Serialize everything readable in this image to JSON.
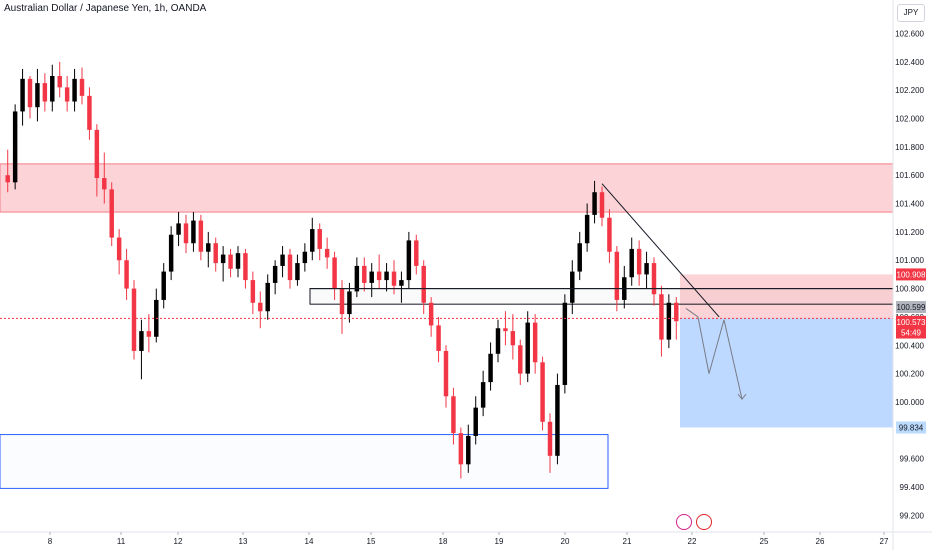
{
  "header": {
    "title": "Australian Dollar / Japanese Yen, 1h, OANDA",
    "currency": "JPY"
  },
  "chart_data": {
    "type": "candlestick",
    "ylim": [
      99.16,
      102.66
    ],
    "y_ticks": [
      "102.600",
      "102.400",
      "102.200",
      "102.000",
      "101.800",
      "101.600",
      "101.400",
      "101.200",
      "101.000",
      "100.800",
      "100.600",
      "100.400",
      "100.200",
      "100.000",
      "99.800",
      "99.600",
      "99.400",
      "99.200"
    ],
    "x_ticks": [
      "8",
      "11",
      "12",
      "13",
      "14",
      "15",
      "18",
      "19",
      "20",
      "21",
      "22",
      "25",
      "26",
      "27"
    ],
    "price_labels": {
      "target_top": "100.908",
      "current": "100.599",
      "last": "100.573",
      "countdown": "54:49",
      "target": "99.834"
    },
    "zones": [
      {
        "name": "resistance-zone",
        "from": 101.34,
        "to": 101.68,
        "color": "#f7cdd1"
      },
      {
        "name": "stop-zone",
        "from": 100.59,
        "to": 100.9,
        "color": "#f8c8cc"
      },
      {
        "name": "profit-zone",
        "from": 99.82,
        "to": 100.59,
        "color": "#bbdafc"
      },
      {
        "name": "demand-zone",
        "from": 99.39,
        "to": 99.77,
        "color": "#ffffff"
      },
      {
        "name": "consolidation-box",
        "from": 100.69,
        "to": 100.8,
        "color": "#ffffff"
      }
    ],
    "candles": [
      [
        101.6,
        101.78,
        101.48,
        101.55
      ],
      [
        101.55,
        102.1,
        101.5,
        102.05
      ],
      [
        102.05,
        102.35,
        101.95,
        102.28
      ],
      [
        102.28,
        102.3,
        102.0,
        102.08
      ],
      [
        102.08,
        102.35,
        101.98,
        102.25
      ],
      [
        102.25,
        102.32,
        102.05,
        102.12
      ],
      [
        102.12,
        102.38,
        102.05,
        102.3
      ],
      [
        102.3,
        102.4,
        102.15,
        102.22
      ],
      [
        102.22,
        102.3,
        102.05,
        102.12
      ],
      [
        102.12,
        102.35,
        102.05,
        102.28
      ],
      [
        102.28,
        102.36,
        102.1,
        102.16
      ],
      [
        102.16,
        102.22,
        101.85,
        101.92
      ],
      [
        101.92,
        101.96,
        101.45,
        101.58
      ],
      [
        101.58,
        101.76,
        101.4,
        101.5
      ],
      [
        101.5,
        101.55,
        101.1,
        101.16
      ],
      [
        101.16,
        101.22,
        100.9,
        101.0
      ],
      [
        101.0,
        101.08,
        100.72,
        100.8
      ],
      [
        100.8,
        100.86,
        100.3,
        100.36
      ],
      [
        100.36,
        100.58,
        100.16,
        100.5
      ],
      [
        100.5,
        100.62,
        100.35,
        100.46
      ],
      [
        100.46,
        100.8,
        100.42,
        100.72
      ],
      [
        100.72,
        100.98,
        100.66,
        100.92
      ],
      [
        100.92,
        101.24,
        100.86,
        101.18
      ],
      [
        101.18,
        101.34,
        101.1,
        101.26
      ],
      [
        101.26,
        101.32,
        101.05,
        101.12
      ],
      [
        101.12,
        101.34,
        101.06,
        101.28
      ],
      [
        101.28,
        101.32,
        101.0,
        101.06
      ],
      [
        101.06,
        101.2,
        100.95,
        101.12
      ],
      [
        101.12,
        101.16,
        100.92,
        100.98
      ],
      [
        100.98,
        101.1,
        100.85,
        101.04
      ],
      [
        101.04,
        101.08,
        100.88,
        100.94
      ],
      [
        100.94,
        101.1,
        100.88,
        101.05
      ],
      [
        101.05,
        101.08,
        100.8,
        100.86
      ],
      [
        100.86,
        100.92,
        100.62,
        100.7
      ],
      [
        100.7,
        100.78,
        100.52,
        100.64
      ],
      [
        100.64,
        100.9,
        100.58,
        100.84
      ],
      [
        100.84,
        101.0,
        100.76,
        100.96
      ],
      [
        100.96,
        101.1,
        100.88,
        101.04
      ],
      [
        101.04,
        101.08,
        100.8,
        100.86
      ],
      [
        100.86,
        101.04,
        100.82,
        100.98
      ],
      [
        100.98,
        101.12,
        100.92,
        101.06
      ],
      [
        101.06,
        101.3,
        101.0,
        101.22
      ],
      [
        101.22,
        101.26,
        101.0,
        101.08
      ],
      [
        101.08,
        101.16,
        100.94,
        101.02
      ],
      [
        101.02,
        101.06,
        100.72,
        100.8
      ],
      [
        100.8,
        100.86,
        100.48,
        100.62
      ],
      [
        100.62,
        100.84,
        100.56,
        100.78
      ],
      [
        100.78,
        101.02,
        100.74,
        100.96
      ],
      [
        100.96,
        101.02,
        100.78,
        100.84
      ],
      [
        100.84,
        100.98,
        100.74,
        100.92
      ],
      [
        100.92,
        101.04,
        100.8,
        100.86
      ],
      [
        100.86,
        100.98,
        100.78,
        100.92
      ],
      [
        100.92,
        101.0,
        100.76,
        100.82
      ],
      [
        100.82,
        100.92,
        100.7,
        100.86
      ],
      [
        100.86,
        101.2,
        100.8,
        101.14
      ],
      [
        101.14,
        101.18,
        100.9,
        100.96
      ],
      [
        100.96,
        101.0,
        100.62,
        100.7
      ],
      [
        100.7,
        100.74,
        100.46,
        100.54
      ],
      [
        100.54,
        100.6,
        100.28,
        100.36
      ],
      [
        100.36,
        100.4,
        99.96,
        100.04
      ],
      [
        100.04,
        100.1,
        99.7,
        99.78
      ],
      [
        99.78,
        99.82,
        99.46,
        99.56
      ],
      [
        99.56,
        99.84,
        99.5,
        99.76
      ],
      [
        99.76,
        100.04,
        99.7,
        99.96
      ],
      [
        99.96,
        100.22,
        99.9,
        100.14
      ],
      [
        100.14,
        100.42,
        100.08,
        100.34
      ],
      [
        100.34,
        100.58,
        100.28,
        100.52
      ],
      [
        100.52,
        100.64,
        100.4,
        100.5
      ],
      [
        100.5,
        100.62,
        100.3,
        100.4
      ],
      [
        100.4,
        100.44,
        100.12,
        100.2
      ],
      [
        100.2,
        100.64,
        100.14,
        100.56
      ],
      [
        100.56,
        100.62,
        100.2,
        100.28
      ],
      [
        100.28,
        100.32,
        99.8,
        99.86
      ],
      [
        99.86,
        99.92,
        99.5,
        99.62
      ],
      [
        99.62,
        100.2,
        99.56,
        100.12
      ],
      [
        100.12,
        100.76,
        100.06,
        100.7
      ],
      [
        100.7,
        101.0,
        100.62,
        100.92
      ],
      [
        100.92,
        101.2,
        100.86,
        101.12
      ],
      [
        101.12,
        101.4,
        101.06,
        101.32
      ],
      [
        101.32,
        101.56,
        101.26,
        101.48
      ],
      [
        101.48,
        101.52,
        101.24,
        101.3
      ],
      [
        101.3,
        101.36,
        100.98,
        101.06
      ],
      [
        101.06,
        101.1,
        100.64,
        100.72
      ],
      [
        100.72,
        100.96,
        100.66,
        100.88
      ],
      [
        100.88,
        101.16,
        100.82,
        101.08
      ],
      [
        101.08,
        101.14,
        100.82,
        100.9
      ],
      [
        100.9,
        101.06,
        100.8,
        100.98
      ],
      [
        100.98,
        101.02,
        100.68,
        100.76
      ],
      [
        100.76,
        100.82,
        100.32,
        100.44
      ],
      [
        100.44,
        100.76,
        100.38,
        100.7
      ],
      [
        100.7,
        100.74,
        100.44,
        100.57
      ]
    ],
    "annotations": {
      "trendline": [
        [
          80,
          101.54
        ],
        [
          92,
          100.6
        ]
      ],
      "resistance_line": [
        [
          0,
          100.8
        ],
        [
          118,
          100.8
        ]
      ],
      "current_price_line": 100.59,
      "projection_path": [
        [
          90,
          100.66
        ],
        [
          92,
          100.6
        ],
        [
          94,
          100.2
        ],
        [
          96,
          100.58
        ],
        [
          98,
          100.02
        ]
      ]
    }
  }
}
